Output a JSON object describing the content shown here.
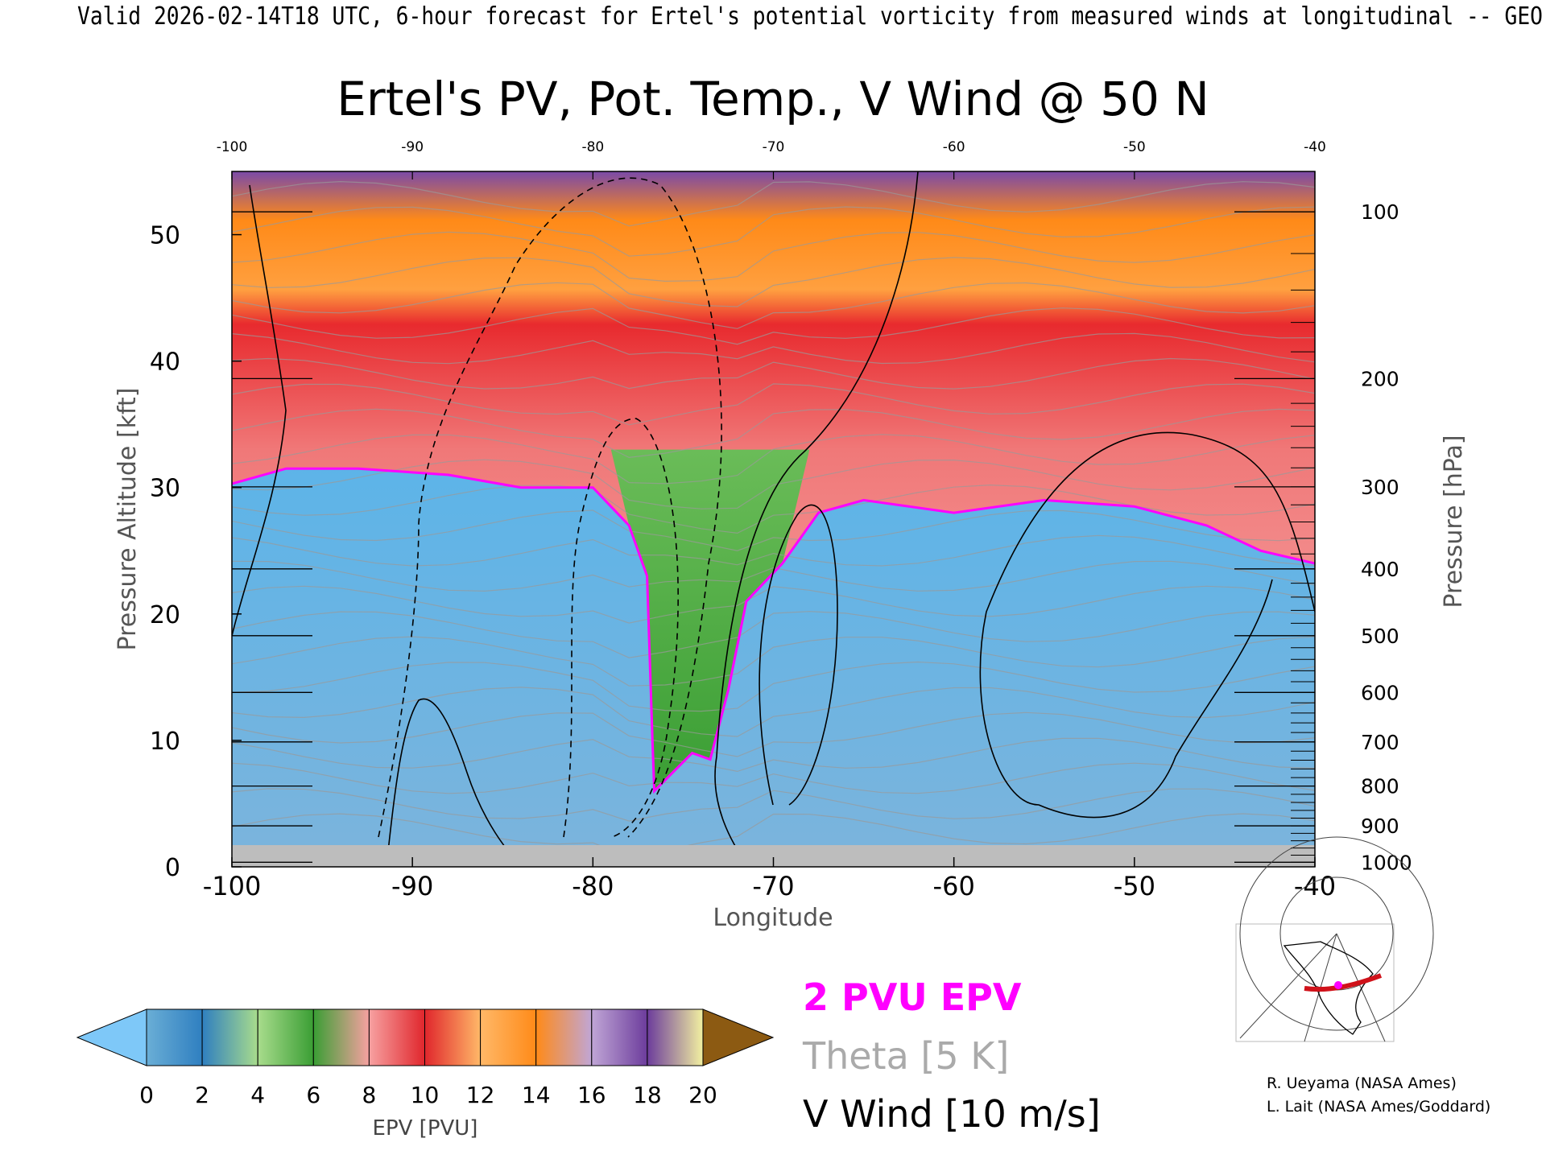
{
  "header_text": "Valid 2026-02-14T18 UTC, 6-hour forecast for Ertel's potential vorticity from measured winds at longitudinal -- GEO",
  "chart_data": {
    "type": "heatmap",
    "title": "Ertel's PV, Pot. Temp., V Wind @ 50 N",
    "xlabel": "Longitude",
    "ylabel": "Pressure Altitude [kft]",
    "ylabel_right": "Pressure [hPa]",
    "xlim": [
      -100,
      -40
    ],
    "ylim": [
      0,
      55
    ],
    "x_ticks_bottom": [
      "-100",
      "-90",
      "-80",
      "-70",
      "-60",
      "-50",
      "-40"
    ],
    "x_ticks_top": [
      "-100",
      "-90",
      "-80",
      "-70",
      "-60",
      "-50",
      "-40"
    ],
    "y_ticks_left": [
      "0",
      "10",
      "20",
      "30",
      "40",
      "50"
    ],
    "pressure_ticks": [
      {
        "label": "100",
        "value": 100
      },
      {
        "label": "200",
        "value": 200
      },
      {
        "label": "300",
        "value": 300
      },
      {
        "label": "400",
        "value": 400
      },
      {
        "label": "500",
        "value": 500
      },
      {
        "label": "600",
        "value": 600
      },
      {
        "label": "700",
        "value": 700
      },
      {
        "label": "800",
        "value": 800
      },
      {
        "label": "900",
        "value": 900
      },
      {
        "label": "1000",
        "value": 1000
      }
    ],
    "tropopause_2pvu_kft": [
      {
        "lon": -100,
        "alt": 30.3
      },
      {
        "lon": -97,
        "alt": 31.5
      },
      {
        "lon": -93,
        "alt": 31.5
      },
      {
        "lon": -88,
        "alt": 31.0
      },
      {
        "lon": -84,
        "alt": 30.0
      },
      {
        "lon": -80,
        "alt": 30.0
      },
      {
        "lon": -78,
        "alt": 27.0
      },
      {
        "lon": -77,
        "alt": 23.0
      },
      {
        "lon": -76.7,
        "alt": 10.0
      },
      {
        "lon": -76.6,
        "alt": 6.0
      },
      {
        "lon": -74.5,
        "alt": 9.0
      },
      {
        "lon": -73.5,
        "alt": 8.5
      },
      {
        "lon": -72.5,
        "alt": 14.0
      },
      {
        "lon": -71.5,
        "alt": 21.0
      },
      {
        "lon": -69.5,
        "alt": 24.0
      },
      {
        "lon": -67.5,
        "alt": 28.0
      },
      {
        "lon": -65,
        "alt": 29.0
      },
      {
        "lon": -60,
        "alt": 28.0
      },
      {
        "lon": -55,
        "alt": 29.0
      },
      {
        "lon": -50,
        "alt": 28.5
      },
      {
        "lon": -46,
        "alt": 27.0
      },
      {
        "lon": -43,
        "alt": 25.0
      },
      {
        "lon": -40,
        "alt": 24.0
      }
    ],
    "colorbar": {
      "label": "EPV [PVU]",
      "ticks": [
        "0",
        "2",
        "4",
        "6",
        "8",
        "10",
        "12",
        "14",
        "16",
        "18",
        "20"
      ],
      "colors": [
        "#6aaed6",
        "#2f7fc0",
        "#a8dc8c",
        "#3a9e34",
        "#f7a1a1",
        "#e0262c",
        "#ffb868",
        "#ff8a18",
        "#c0a6d6",
        "#6c3c9c",
        "#f2f0a0"
      ],
      "under_color": "#7ec8f8",
      "over_color": "#8c5a12"
    },
    "legend": {
      "pv_label": "2 PVU EPV",
      "theta_label": "Theta [5 K]",
      "vwind_label": "V Wind [10 m/s]"
    }
  },
  "credits": {
    "line1": "R. Ueyama (NASA Ames)",
    "line2": "L. Lait (NASA Ames/Goddard)"
  }
}
